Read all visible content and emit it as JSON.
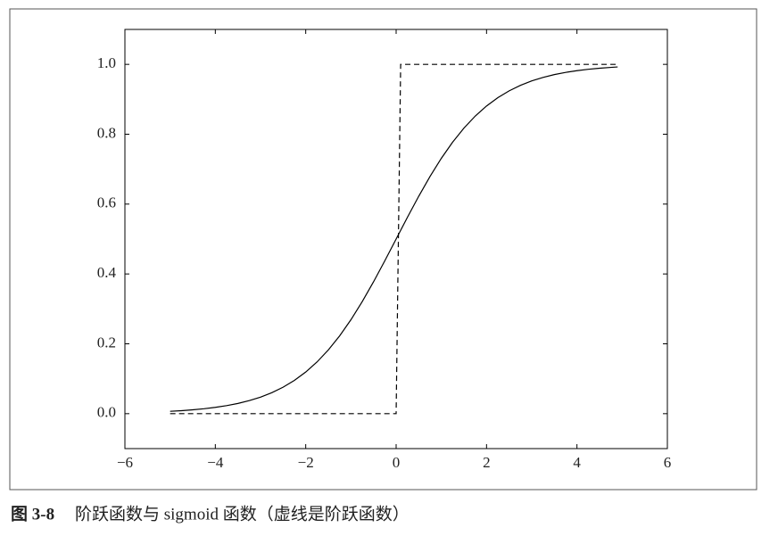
{
  "chart_data": {
    "type": "line",
    "caption_label": "图 3-8",
    "caption": "阶跃函数与 sigmoid 函数（虚线是阶跃函数）",
    "xlim": [
      -6,
      6
    ],
    "xticks": [
      {
        "value": -6,
        "label": "−6"
      },
      {
        "value": -4,
        "label": "−4"
      },
      {
        "value": -2,
        "label": "−2"
      },
      0,
      2,
      4,
      6
    ],
    "ylim": [
      -0.1,
      1.1
    ],
    "yticks": [
      {
        "value": 0,
        "label": "0.0"
      },
      0.2,
      0.4,
      0.6,
      0.8,
      {
        "value": 1,
        "label": "1.0"
      }
    ],
    "grid": false,
    "series": [
      {
        "color": "#000000",
        "linestyle": "solid",
        "x": [
          -5,
          -4.75,
          -4.5,
          -4.25,
          -4,
          -3.75,
          -3.5,
          -3.25,
          -3,
          -2.75,
          -2.5,
          -2.25,
          -2,
          -1.75,
          -1.5,
          -1.25,
          -1,
          -0.75,
          -0.5,
          -0.25,
          0,
          0.25,
          0.5,
          0.75,
          1,
          1.25,
          1.5,
          1.75,
          2,
          2.25,
          2.5,
          2.75,
          3,
          3.25,
          3.5,
          3.75,
          4,
          4.25,
          4.5,
          4.75,
          4.9
        ],
        "values": [
          0.0067,
          0.0086,
          0.011,
          0.0141,
          0.018,
          0.023,
          0.0293,
          0.0373,
          0.0474,
          0.0601,
          0.0759,
          0.0953,
          0.1192,
          0.148,
          0.1824,
          0.2227,
          0.2689,
          0.3208,
          0.3775,
          0.4378,
          0.5,
          0.5622,
          0.6225,
          0.6792,
          0.7311,
          0.7773,
          0.8176,
          0.852,
          0.8808,
          0.9047,
          0.9241,
          0.9399,
          0.9526,
          0.9627,
          0.9707,
          0.977,
          0.982,
          0.9859,
          0.989,
          0.9914,
          0.9926
        ]
      },
      {
        "color": "#000000",
        "linestyle": "dashed",
        "x": [
          -5,
          0,
          0.1,
          4.9
        ],
        "values": [
          0,
          0,
          1,
          1
        ]
      }
    ]
  }
}
